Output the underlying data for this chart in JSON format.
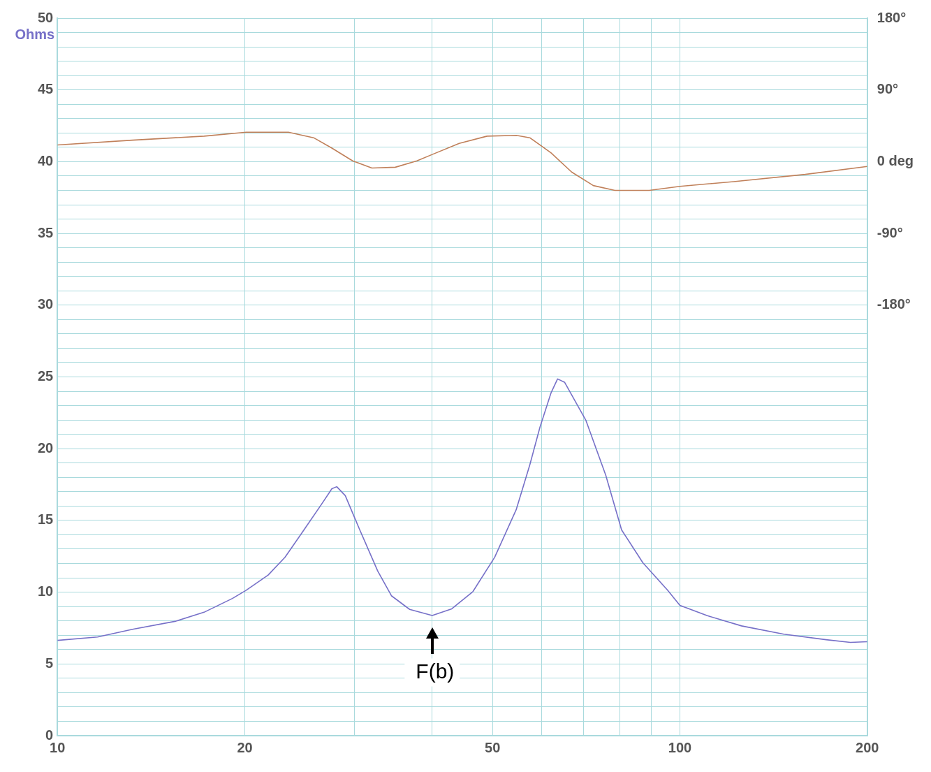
{
  "chart_data": {
    "type": "line",
    "ylabel": "Ohms",
    "x": [
      10,
      11.6,
      13.2,
      15.5,
      17.2,
      19.1,
      20.1,
      21.8,
      23.2,
      24.8,
      26.5,
      27.6,
      28.1,
      29.0,
      30.6,
      32.7,
      34.4,
      36.8,
      40,
      43.0,
      46.5,
      50.4,
      54.6,
      57.4,
      59.6,
      62.1,
      63.6,
      65.3,
      70.6,
      76.0,
      80.6,
      87.2,
      95.6,
      100,
      110.5,
      125.6,
      146.9,
      171.7,
      187.9,
      200
    ],
    "series": [
      {
        "color": "#7670c8",
        "values": [
          6.64,
          6.88,
          7.41,
          7.98,
          8.6,
          9.56,
          10.13,
          11.19,
          12.43,
          14.24,
          16.06,
          17.21,
          17.35,
          16.73,
          14.34,
          11.47,
          9.75,
          8.8,
          8.37,
          8.84,
          10.04,
          12.43,
          15.77,
          18.88,
          21.51,
          23.9,
          24.86,
          24.62,
          21.99,
          18.16,
          14.34,
          12.05,
          10.13,
          9.08,
          8.37,
          7.65,
          7.07,
          6.69,
          6.5,
          6.55
        ]
      },
      {
        "color": "#c0805a",
        "axis": "y2",
        "x": [
          10,
          13.2,
          17.2,
          20.1,
          23.5,
          25.8,
          27.6,
          29.8,
          32.0,
          34.9,
          37.8,
          40,
          44.2,
          49.0,
          54.6,
          57.4,
          62.1,
          67.0,
          72.6,
          78.6,
          89.3,
          100,
          122,
          159,
          200
        ],
        "values": [
          21,
          27,
          32,
          37,
          37,
          30,
          17,
          1,
          -8,
          -7,
          1,
          9,
          23,
          32,
          33,
          30,
          11,
          -13,
          -30,
          -36,
          -36,
          -31,
          -25,
          -16,
          -6
        ]
      }
    ],
    "log": "x",
    "xlim": [
      10,
      200
    ],
    "xticks": [
      10,
      20,
      {
        "value": 30,
        "label": null
      },
      {
        "value": 40,
        "label": null
      },
      50,
      {
        "value": 60,
        "label": null
      },
      {
        "value": 70,
        "label": null
      },
      {
        "value": 80,
        "label": null
      },
      {
        "value": 90,
        "label": null
      },
      100,
      200
    ],
    "ylim": [
      0,
      50
    ],
    "yticks": [
      0,
      {
        "value": 1,
        "label": null
      },
      {
        "value": 2,
        "label": null
      },
      {
        "value": 3,
        "label": null
      },
      {
        "value": 4,
        "label": null
      },
      5,
      {
        "value": 6,
        "label": null
      },
      {
        "value": 7,
        "label": null
      },
      {
        "value": 8,
        "label": null
      },
      {
        "value": 9,
        "label": null
      },
      10,
      {
        "value": 11,
        "label": null
      },
      {
        "value": 12,
        "label": null
      },
      {
        "value": 13,
        "label": null
      },
      {
        "value": 14,
        "label": null
      },
      15,
      {
        "value": 16,
        "label": null
      },
      {
        "value": 17,
        "label": null
      },
      {
        "value": 18,
        "label": null
      },
      {
        "value": 19,
        "label": null
      },
      20,
      {
        "value": 21,
        "label": null
      },
      {
        "value": 22,
        "label": null
      },
      {
        "value": 23,
        "label": null
      },
      {
        "value": 24,
        "label": null
      },
      25,
      {
        "value": 26,
        "label": null
      },
      {
        "value": 27,
        "label": null
      },
      {
        "value": 28,
        "label": null
      },
      {
        "value": 29,
        "label": null
      },
      30,
      {
        "value": 31,
        "label": null
      },
      {
        "value": 32,
        "label": null
      },
      {
        "value": 33,
        "label": null
      },
      {
        "value": 34,
        "label": null
      },
      35,
      {
        "value": 36,
        "label": null
      },
      {
        "value": 37,
        "label": null
      },
      {
        "value": 38,
        "label": null
      },
      {
        "value": 39,
        "label": null
      },
      40,
      {
        "value": 41,
        "label": null
      },
      {
        "value": 42,
        "label": null
      },
      {
        "value": 43,
        "label": null
      },
      {
        "value": 44,
        "label": null
      },
      45,
      {
        "value": 46,
        "label": null
      },
      {
        "value": 47,
        "label": null
      },
      {
        "value": 48,
        "label": null
      },
      {
        "value": 49,
        "label": null
      },
      50
    ],
    "y2lim": [
      -720,
      180
    ],
    "y2ticks": [
      {
        "value": 180,
        "label": "180°"
      },
      {
        "value": 90,
        "label": "90°"
      },
      {
        "value": 0,
        "label": "0 deg"
      },
      {
        "value": -90,
        "label": "-90°"
      },
      {
        "value": -180,
        "label": "-180°"
      }
    ],
    "annotations": [
      {
        "text": "F(b)",
        "x": 40,
        "y": 8.4
      }
    ],
    "grid": true,
    "legend": false,
    "marker": "none",
    "line_style": "solid"
  }
}
